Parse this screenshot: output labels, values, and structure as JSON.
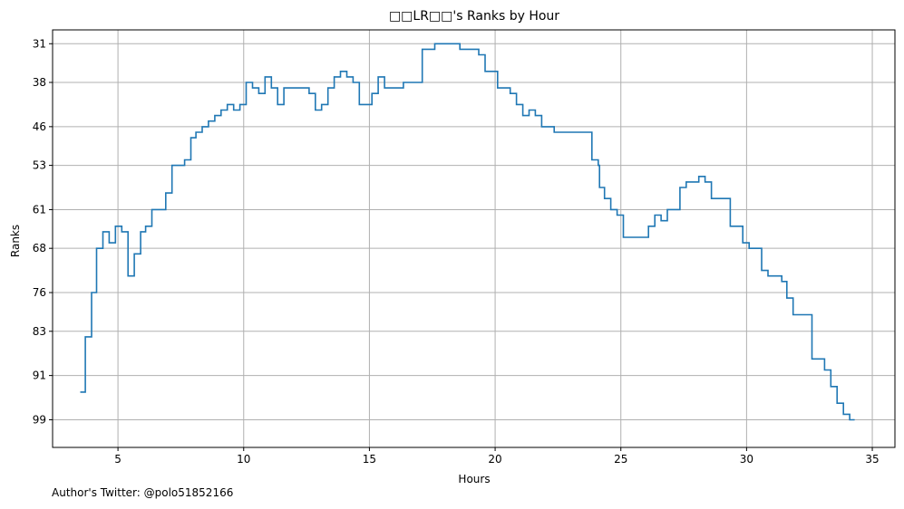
{
  "footer": {
    "credit": "Author's Twitter: @polo51852166"
  },
  "chart_data": {
    "type": "line",
    "step": true,
    "title": "□□LR□□'s Ranks by Hour",
    "xlabel": "Hours",
    "ylabel": "Ranks",
    "xlim": [
      2.4,
      35.9
    ],
    "ylim": [
      104.0,
      28.5
    ],
    "y_inverted": true,
    "grid": true,
    "line_color": "#1f77b4",
    "grid_color": "#b0b0b0",
    "xticks": [
      5,
      10,
      15,
      20,
      25,
      30,
      35
    ],
    "yticks": [
      31,
      38,
      46,
      53,
      61,
      68,
      76,
      83,
      91,
      99
    ],
    "series": [
      {
        "points": [
          [
            3.5,
            94
          ],
          [
            3.7,
            84
          ],
          [
            3.95,
            76
          ],
          [
            4.15,
            68
          ],
          [
            4.4,
            65
          ],
          [
            4.65,
            67
          ],
          [
            4.9,
            64
          ],
          [
            5.15,
            65
          ],
          [
            5.4,
            73
          ],
          [
            5.65,
            69
          ],
          [
            5.9,
            65
          ],
          [
            6.1,
            64
          ],
          [
            6.35,
            61
          ],
          [
            6.9,
            58
          ],
          [
            7.15,
            53
          ],
          [
            7.65,
            52
          ],
          [
            7.9,
            48
          ],
          [
            8.1,
            47
          ],
          [
            8.35,
            46
          ],
          [
            8.6,
            45
          ],
          [
            8.85,
            44
          ],
          [
            9.1,
            43
          ],
          [
            9.35,
            42
          ],
          [
            9.6,
            43
          ],
          [
            9.85,
            42
          ],
          [
            10.1,
            38
          ],
          [
            10.35,
            39
          ],
          [
            10.6,
            40
          ],
          [
            10.85,
            37
          ],
          [
            11.1,
            39
          ],
          [
            11.35,
            42
          ],
          [
            11.6,
            39
          ],
          [
            12.6,
            40
          ],
          [
            12.85,
            43
          ],
          [
            13.1,
            42
          ],
          [
            13.35,
            39
          ],
          [
            13.6,
            37
          ],
          [
            13.85,
            36
          ],
          [
            14.1,
            37
          ],
          [
            14.35,
            38
          ],
          [
            14.6,
            42
          ],
          [
            15.1,
            40
          ],
          [
            15.35,
            37
          ],
          [
            15.6,
            39
          ],
          [
            16.35,
            38
          ],
          [
            17.1,
            32
          ],
          [
            17.6,
            31
          ],
          [
            18.6,
            32
          ],
          [
            19.35,
            33
          ],
          [
            19.6,
            36
          ],
          [
            20.1,
            39
          ],
          [
            20.6,
            40
          ],
          [
            20.85,
            42
          ],
          [
            21.1,
            44
          ],
          [
            21.35,
            43
          ],
          [
            21.6,
            44
          ],
          [
            21.85,
            46
          ],
          [
            22.35,
            47
          ],
          [
            23.1,
            47
          ],
          [
            23.85,
            52
          ],
          [
            24.1,
            53
          ],
          [
            24.15,
            57
          ],
          [
            24.35,
            59
          ],
          [
            24.6,
            61
          ],
          [
            24.85,
            62
          ],
          [
            25.1,
            66
          ],
          [
            26.1,
            64
          ],
          [
            26.35,
            62
          ],
          [
            26.6,
            63
          ],
          [
            26.85,
            61
          ],
          [
            27.35,
            57
          ],
          [
            27.6,
            56
          ],
          [
            28.1,
            55
          ],
          [
            28.35,
            56
          ],
          [
            28.6,
            59
          ],
          [
            29.35,
            64
          ],
          [
            29.85,
            67
          ],
          [
            30.1,
            68
          ],
          [
            30.6,
            72
          ],
          [
            30.85,
            73
          ],
          [
            31.4,
            74
          ],
          [
            31.6,
            77
          ],
          [
            31.85,
            80
          ],
          [
            32.6,
            88
          ],
          [
            33.1,
            90
          ],
          [
            33.35,
            93
          ],
          [
            33.6,
            96
          ],
          [
            33.85,
            98
          ],
          [
            34.1,
            99
          ],
          [
            34.3,
            99
          ]
        ]
      }
    ]
  }
}
